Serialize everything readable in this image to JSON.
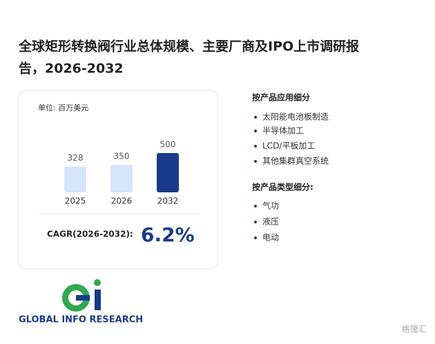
{
  "header": {
    "title_line1": "全球矩形转换阀行业总体规模、主要厂商及IPO上市调研报",
    "title_line2": "告，2026-2032"
  },
  "chart_data": {
    "type": "bar",
    "unit_label": "单位: 百万美元",
    "categories": [
      "2025",
      "2026",
      "2032"
    ],
    "values": [
      328,
      350,
      500
    ],
    "colors": [
      "#d3e6fa",
      "#d3e6fa",
      "#173a8c"
    ],
    "cagr_label": "CAGR(2026-2032):",
    "cagr_value": "6.2%"
  },
  "segments": [
    {
      "title": "按产品应用细分",
      "items": [
        "太阳能电池板制造",
        "半导体加工",
        "LCD/平板加工",
        "其他集群真空系统"
      ]
    },
    {
      "title": "按产品类型细分:",
      "items": [
        "气功",
        "液压",
        "电动"
      ]
    }
  ],
  "footer": {
    "logo_text": "GLOBAL INFO RESEARCH",
    "brand": "格隆汇"
  }
}
